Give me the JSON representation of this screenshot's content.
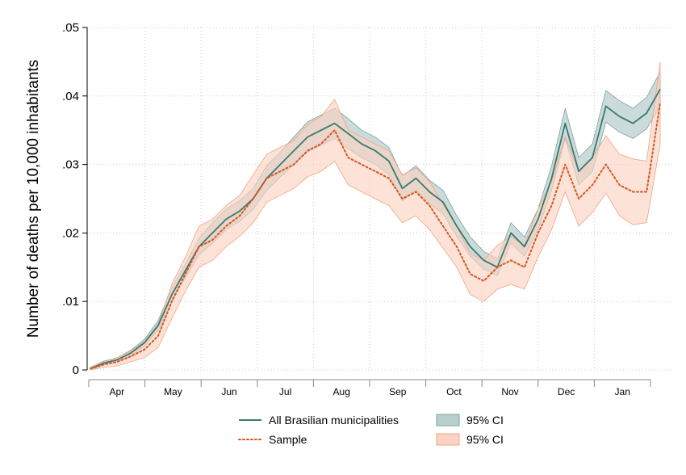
{
  "chart_data": {
    "type": "line",
    "ylabel": "Number of deaths per 10,000 inhabitants",
    "xlabel": "",
    "ylim": [
      0,
      0.05
    ],
    "yticks": [
      {
        "value": 0,
        "label": "0"
      },
      {
        "value": 0.01,
        "label": ".01"
      },
      {
        "value": 0.02,
        "label": ".02"
      },
      {
        "value": 0.03,
        "label": ".03"
      },
      {
        "value": 0.04,
        "label": ".04"
      },
      {
        "value": 0.05,
        "label": ".05"
      }
    ],
    "xlim": [
      0,
      42.5
    ],
    "month_labels": [
      "Apr",
      "May",
      "Jun",
      "Jul",
      "Aug",
      "Sep",
      "Oct",
      "Nov",
      "Dec",
      "Jan"
    ],
    "grid": true,
    "legend_placement": "bottom",
    "x": [
      0,
      1,
      2,
      3,
      4,
      5,
      6,
      7,
      8,
      9,
      10,
      11,
      12,
      13,
      14,
      15,
      16,
      17,
      18,
      19,
      20,
      21,
      22,
      23,
      24,
      25,
      26,
      27,
      28,
      29,
      30,
      31,
      32,
      33,
      34,
      35,
      36,
      37,
      38,
      39,
      40,
      41,
      42
    ],
    "series": [
      {
        "name": "All Brasilian municipalities",
        "color": "#3a7a6e",
        "style": "solid",
        "values": [
          0.0002,
          0.001,
          0.0015,
          0.0025,
          0.004,
          0.0065,
          0.011,
          0.0145,
          0.018,
          0.02,
          0.022,
          0.0232,
          0.025,
          0.028,
          0.03,
          0.032,
          0.034,
          0.035,
          0.036,
          0.0345,
          0.033,
          0.032,
          0.0305,
          0.0265,
          0.028,
          0.026,
          0.0245,
          0.021,
          0.018,
          0.016,
          0.015,
          0.02,
          0.018,
          0.022,
          0.028,
          0.036,
          0.029,
          0.031,
          0.0385,
          0.037,
          0.036,
          0.0375,
          0.041
        ]
      },
      {
        "name": "Sample",
        "color": "#d9541e",
        "style": "dotted",
        "values": [
          0.0002,
          0.0008,
          0.0012,
          0.002,
          0.003,
          0.005,
          0.01,
          0.014,
          0.018,
          0.019,
          0.021,
          0.0225,
          0.025,
          0.028,
          0.029,
          0.03,
          0.032,
          0.033,
          0.035,
          0.031,
          0.03,
          0.029,
          0.028,
          0.025,
          0.026,
          0.024,
          0.021,
          0.018,
          0.014,
          0.013,
          0.015,
          0.016,
          0.015,
          0.02,
          0.024,
          0.03,
          0.025,
          0.027,
          0.03,
          0.027,
          0.026,
          0.026,
          0.039
        ]
      }
    ],
    "ci_bands": [
      {
        "name": "95% CI",
        "of": "All Brasilian municipalities",
        "fill": "#b9cfcf",
        "stroke": "#7aa3a0",
        "lower": [
          0.0,
          0.0007,
          0.0012,
          0.0021,
          0.0035,
          0.0058,
          0.01,
          0.0135,
          0.0168,
          0.0185,
          0.0205,
          0.0217,
          0.0235,
          0.0262,
          0.0282,
          0.03,
          0.0318,
          0.0328,
          0.0338,
          0.0323,
          0.031,
          0.03,
          0.0285,
          0.0247,
          0.0262,
          0.0243,
          0.0228,
          0.0195,
          0.0166,
          0.0147,
          0.0138,
          0.0185,
          0.0166,
          0.0205,
          0.0262,
          0.0338,
          0.027,
          0.029,
          0.0362,
          0.0347,
          0.0338,
          0.0352,
          0.0385
        ],
        "upper": [
          0.0004,
          0.0013,
          0.0018,
          0.0029,
          0.0045,
          0.0072,
          0.012,
          0.0155,
          0.0192,
          0.0215,
          0.0235,
          0.0247,
          0.0265,
          0.0298,
          0.0318,
          0.034,
          0.0362,
          0.0372,
          0.0382,
          0.0367,
          0.035,
          0.034,
          0.0325,
          0.0283,
          0.0298,
          0.0277,
          0.0262,
          0.0225,
          0.0194,
          0.0173,
          0.0162,
          0.0215,
          0.0194,
          0.0235,
          0.0298,
          0.0382,
          0.031,
          0.033,
          0.0408,
          0.0393,
          0.0382,
          0.0398,
          0.0435
        ]
      },
      {
        "name": "95% CI",
        "of": "Sample",
        "fill": "#fbd3c2",
        "stroke": "#f1a585",
        "lower": [
          0.0,
          0.0004,
          0.0006,
          0.0012,
          0.0018,
          0.0033,
          0.0075,
          0.0115,
          0.015,
          0.016,
          0.018,
          0.0195,
          0.0215,
          0.0245,
          0.0255,
          0.0265,
          0.0282,
          0.029,
          0.0305,
          0.027,
          0.026,
          0.025,
          0.024,
          0.0215,
          0.0225,
          0.0205,
          0.0178,
          0.015,
          0.011,
          0.01,
          0.0118,
          0.0125,
          0.0118,
          0.0165,
          0.0205,
          0.026,
          0.021,
          0.023,
          0.0258,
          0.0225,
          0.0212,
          0.0215,
          0.033
        ],
        "upper": [
          0.0004,
          0.0012,
          0.0018,
          0.0028,
          0.0042,
          0.0067,
          0.0125,
          0.0165,
          0.021,
          0.022,
          0.024,
          0.0255,
          0.0285,
          0.0315,
          0.0325,
          0.0335,
          0.0358,
          0.037,
          0.0395,
          0.035,
          0.034,
          0.033,
          0.032,
          0.0285,
          0.0295,
          0.0275,
          0.0242,
          0.021,
          0.017,
          0.016,
          0.0182,
          0.0195,
          0.0182,
          0.0235,
          0.0275,
          0.034,
          0.029,
          0.031,
          0.0342,
          0.0315,
          0.0308,
          0.0305,
          0.045
        ]
      }
    ],
    "legend": [
      {
        "label": "All Brasilian municipalities",
        "kind": "line-solid",
        "color": "#3a7a6e"
      },
      {
        "label": "95% CI",
        "kind": "band",
        "fill": "#b9cfcf",
        "stroke": "#7aa3a0"
      },
      {
        "label": "Sample",
        "kind": "line-dotted",
        "color": "#d9541e"
      },
      {
        "label": "95% CI",
        "kind": "band",
        "fill": "#fbd3c2",
        "stroke": "#f1a585"
      }
    ]
  }
}
